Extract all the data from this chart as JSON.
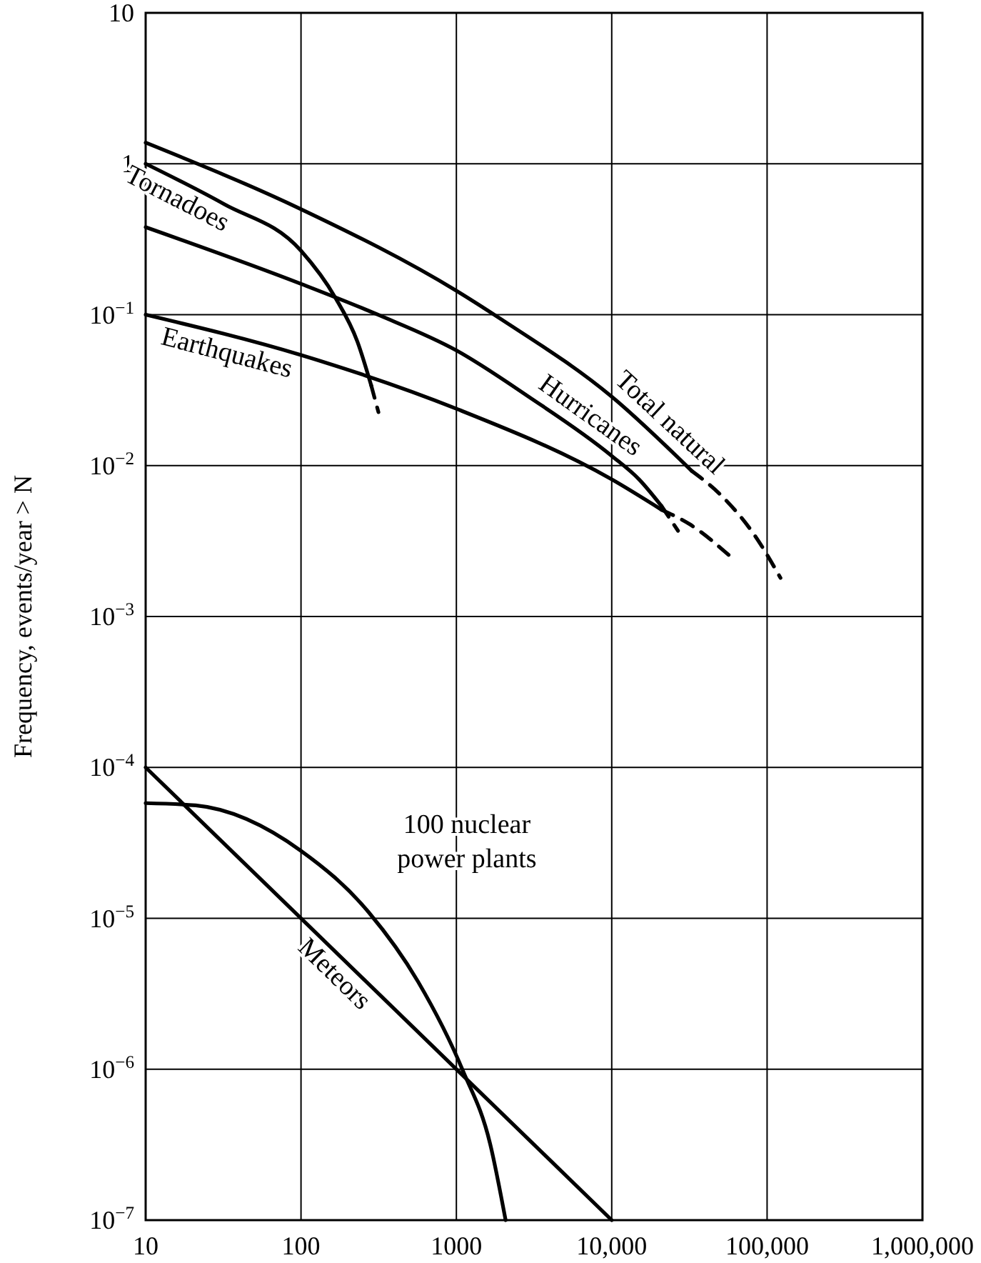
{
  "chart_data": {
    "type": "line",
    "ylabel": "Frequency, events/year > N",
    "log": "xy",
    "grid": true,
    "marker": "none",
    "xlim": [
      10,
      1000000
    ],
    "ylim": [
      1e-07,
      10
    ],
    "xticks": [
      10,
      100,
      1000,
      {
        "value": 10000,
        "label": "10,000"
      },
      {
        "value": 100000,
        "label": "100,000"
      },
      {
        "value": 1000000,
        "label": "1,000,000"
      }
    ],
    "yticks": [
      {
        "value": 1e-07,
        "label": "10$^{−7}$"
      },
      {
        "value": 1e-06,
        "label": "10$^{−6}$"
      },
      {
        "value": 1e-05,
        "label": "10$^{−5}$"
      },
      {
        "value": 0.0001,
        "label": "10$^{−4}$"
      },
      {
        "value": 0.001,
        "label": "10$^{−3}$"
      },
      {
        "value": 0.01,
        "label": "10$^{−2}$"
      },
      {
        "value": 0.1,
        "label": "10$^{−1}$"
      },
      1,
      10
    ],
    "series": [
      {
        "name": "Total natural",
        "color": "#000000",
        "line_style": "solid",
        "x": [
          10,
          100,
          1000,
          1950,
          10000,
          32800
        ],
        "values": [
          1.38,
          0.5,
          0.144,
          0.093,
          0.0286,
          0.0092
        ]
      },
      {
        "color": "#000000",
        "line_style": "dashed",
        "x": [
          32800,
          51000,
          84000,
          122000
        ],
        "values": [
          0.0092,
          0.0063,
          0.0034,
          0.0018
        ]
      },
      {
        "name": "Tornadoes",
        "color": "#000000",
        "line_style": "solid",
        "x": [
          10,
          32,
          100,
          166,
          231,
          283
        ],
        "values": [
          1.0,
          0.54,
          0.265,
          0.13,
          0.066,
          0.034
        ]
      },
      {
        "color": "#000000",
        "line_style": "dashed",
        "x": [
          283,
          315
        ],
        "values": [
          0.034,
          0.0226
        ]
      },
      {
        "name": "Hurricanes",
        "color": "#000000",
        "line_style": "solid",
        "x": [
          10,
          100,
          320,
          1000,
          2920,
          10000,
          15000,
          20900
        ],
        "values": [
          0.38,
          0.16,
          0.099,
          0.058,
          0.0286,
          0.0116,
          0.0081,
          0.0054
        ]
      },
      {
        "color": "#000000",
        "line_style": "dashed",
        "x": [
          20900,
          26700
        ],
        "values": [
          0.0054,
          0.0037
        ]
      },
      {
        "name": "Earthquakes",
        "color": "#000000",
        "line_style": "solid",
        "x": [
          10,
          100,
          1000,
          10000,
          20900
        ],
        "values": [
          0.1,
          0.054,
          0.0238,
          0.0081,
          0.0051
        ]
      },
      {
        "color": "#000000",
        "line_style": "dashed",
        "x": [
          20900,
          31600,
          58000
        ],
        "values": [
          0.0051,
          0.0041,
          0.0025
        ]
      },
      {
        "name": "100 nuclear power plants",
        "color": "#000000",
        "line_style": "solid",
        "x": [
          10,
          21,
          100,
          272,
          567,
          1100,
          1650,
          2075
        ],
        "values": [
          5.8e-05,
          5.6e-05,
          2.8e-05,
          1.1e-05,
          3.8e-06,
          9.8e-07,
          3.2e-07,
          1e-07
        ]
      },
      {
        "name": "Meteors",
        "color": "#000000",
        "line_style": "solid",
        "x": [
          10,
          10000
        ],
        "values": [
          0.0001,
          1e-07
        ]
      }
    ]
  }
}
